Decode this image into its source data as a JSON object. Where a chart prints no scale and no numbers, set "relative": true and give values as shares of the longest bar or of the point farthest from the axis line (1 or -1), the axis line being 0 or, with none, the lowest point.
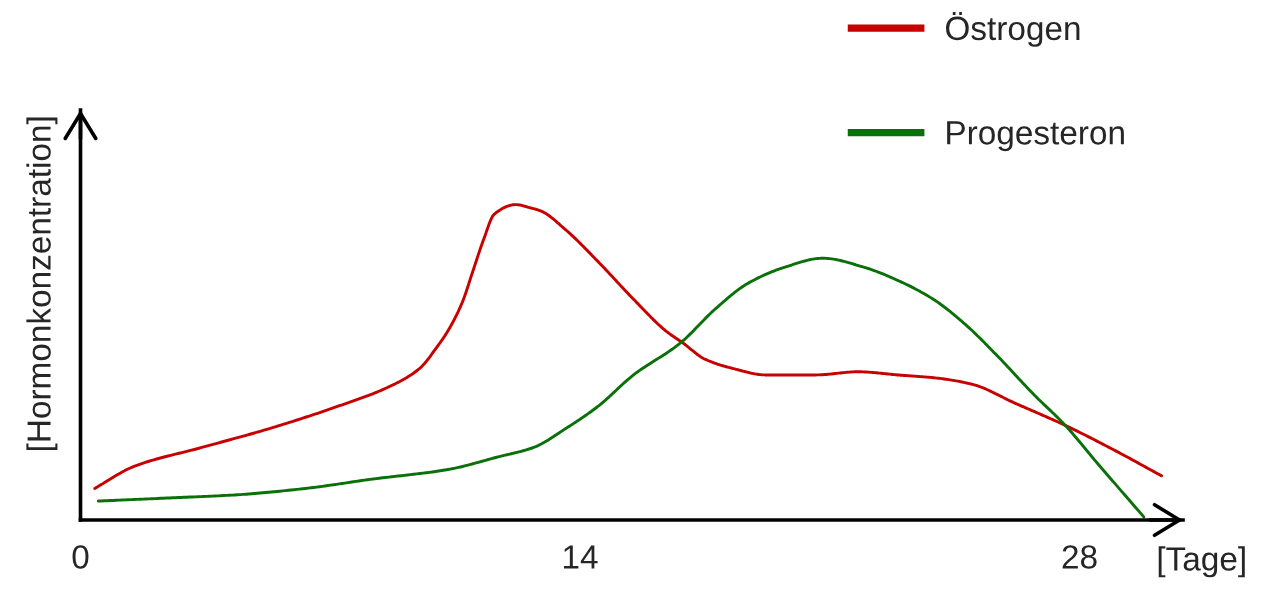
{
  "chart_data": {
    "type": "line",
    "xlabel": "[Tage]",
    "ylabel": "[Hormonkonzentration]",
    "relative": true,
    "xlim": [
      0,
      30.9
    ],
    "xticks": [
      0,
      14,
      28
    ],
    "tick_labels": "x",
    "legend": "top right",
    "series": [
      {
        "name": "Östrogen",
        "color": "#c80000",
        "x": [
          0.4,
          1.5,
          3.4,
          5.3,
          7.2,
          8.6,
          9.5,
          10.0,
          10.3,
          10.7,
          11.0,
          11.3,
          11.6,
          12.2,
          12.6,
          12.9,
          13.6,
          14.5,
          15.5,
          16.4,
          16.9,
          17.5,
          18.3,
          19.2,
          19.8,
          20.6,
          21.8,
          22.9,
          24.0,
          25.0,
          26.2,
          27.6,
          29.0,
          30.3
        ],
        "values": [
          0.1,
          0.17,
          0.23,
          0.29,
          0.36,
          0.42,
          0.48,
          0.55,
          0.6,
          0.69,
          0.79,
          0.89,
          0.97,
          1.0,
          0.99,
          0.98,
          0.92,
          0.82,
          0.7,
          0.6,
          0.56,
          0.51,
          0.48,
          0.46,
          0.46,
          0.46,
          0.47,
          0.46,
          0.45,
          0.43,
          0.37,
          0.3,
          0.22,
          0.14
        ]
      },
      {
        "name": "Progesteron",
        "color": "#0a700a",
        "x": [
          0.5,
          2.5,
          4.4,
          6.3,
          8.2,
          10.3,
          11.7,
          12.7,
          13.6,
          14.5,
          15.5,
          16.8,
          17.8,
          18.7,
          19.7,
          20.8,
          22.0,
          22.9,
          23.9,
          24.8,
          25.7,
          26.7,
          27.6,
          28.5,
          29.8
        ],
        "values": [
          0.06,
          0.07,
          0.08,
          0.1,
          0.13,
          0.16,
          0.2,
          0.23,
          0.29,
          0.36,
          0.46,
          0.56,
          0.67,
          0.75,
          0.8,
          0.83,
          0.8,
          0.76,
          0.7,
          0.62,
          0.52,
          0.4,
          0.3,
          0.18,
          0.01
        ]
      }
    ]
  }
}
